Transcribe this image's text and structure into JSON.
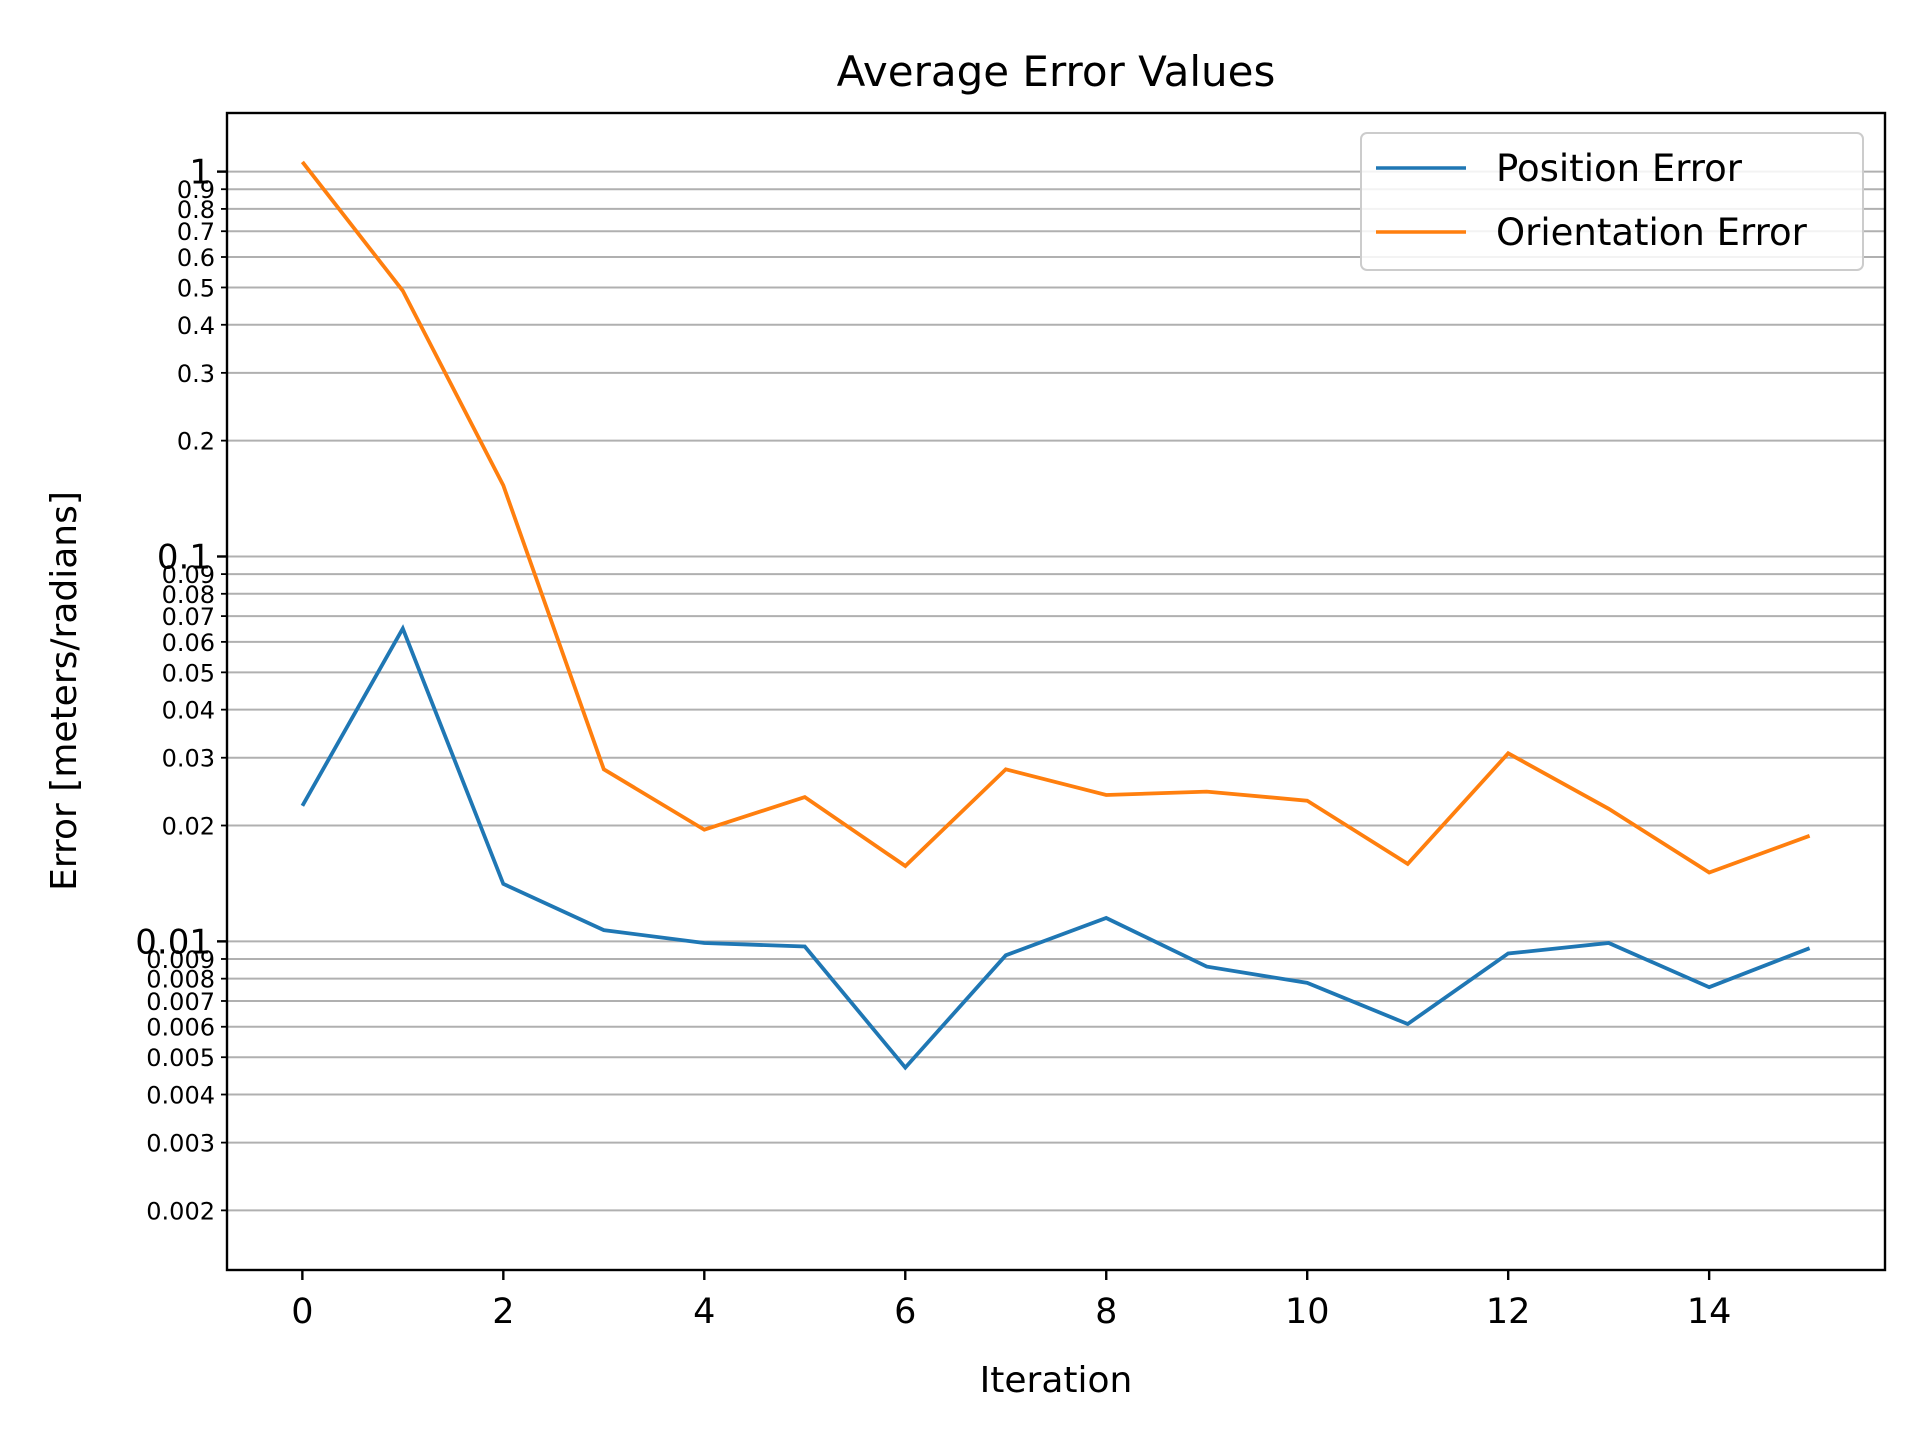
{
  "chart_data": {
    "type": "line",
    "title": "Average Error Values",
    "xlabel": "Iteration",
    "ylabel": "Error [meters/radians]",
    "yscale": "log",
    "xlim": [
      -0.75,
      15.75
    ],
    "ylim": [
      0.0014,
      1.42
    ],
    "grid": "y-major-and-minor",
    "legend_position": "top-right",
    "x": [
      0,
      1,
      2,
      3,
      4,
      5,
      6,
      7,
      8,
      9,
      10,
      11,
      12,
      13,
      14,
      15
    ],
    "xticks": [
      "0",
      "2",
      "4",
      "6",
      "8",
      "10",
      "12",
      "14"
    ],
    "yticks_major": [
      "0.01",
      "0.1",
      "1"
    ],
    "yticks_minor": [
      "0.002",
      "0.003",
      "0.004",
      "0.005",
      "0.006",
      "0.007",
      "0.008",
      "0.009",
      "0.02",
      "0.03",
      "0.04",
      "0.05",
      "0.06",
      "0.07",
      "0.08",
      "0.09",
      "0.2",
      "0.3",
      "0.4",
      "0.5",
      "0.6",
      "0.7",
      "0.8",
      "0.9"
    ],
    "series": [
      {
        "name": "Position Error",
        "color": "#1f77b4",
        "values": [
          0.0225,
          0.065,
          0.0141,
          0.0107,
          0.0099,
          0.0097,
          0.0047,
          0.0092,
          0.0115,
          0.0086,
          0.0078,
          0.0061,
          0.0093,
          0.0099,
          0.0076,
          0.0096
        ]
      },
      {
        "name": "Orientation Error",
        "color": "#ff7f0e",
        "values": [
          1.06,
          0.49,
          0.153,
          0.028,
          0.0195,
          0.0237,
          0.0157,
          0.028,
          0.024,
          0.0245,
          0.0232,
          0.0159,
          0.0308,
          0.0221,
          0.0151,
          0.0188
        ]
      }
    ]
  }
}
